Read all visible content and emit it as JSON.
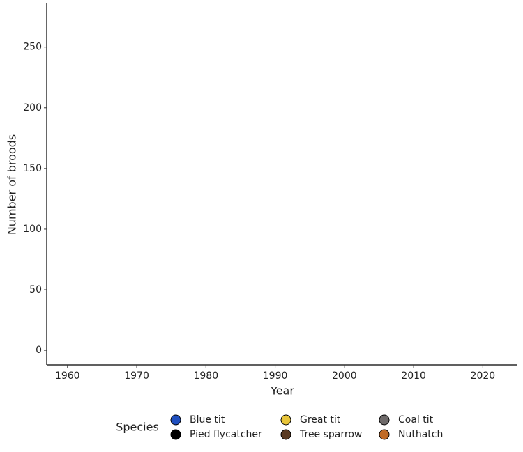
{
  "chart_data": {
    "type": "scatter",
    "x_label": "Year",
    "y_label": "Number of broods",
    "xlim": [
      1957,
      2025
    ],
    "xticks": [
      1960,
      1970,
      1980,
      1990,
      2000,
      2010,
      2020
    ],
    "ylim": [
      -12,
      286
    ],
    "yticks": [
      0,
      50,
      100,
      150,
      200,
      250
    ],
    "legend_title": "Species",
    "legend_position": "bottom",
    "x": [],
    "series": [
      {
        "name": "Blue tit",
        "color": "#1f4fbf",
        "values": []
      },
      {
        "name": "Pied flycatcher",
        "color": "#000000",
        "values": []
      },
      {
        "name": "Great tit",
        "color": "#e8c53a",
        "values": []
      },
      {
        "name": "Tree sparrow",
        "color": "#5a3a22",
        "values": []
      },
      {
        "name": "Coal tit",
        "color": "#6e6a6a",
        "values": []
      },
      {
        "name": "Nuthatch",
        "color": "#c06a25",
        "values": []
      }
    ]
  }
}
